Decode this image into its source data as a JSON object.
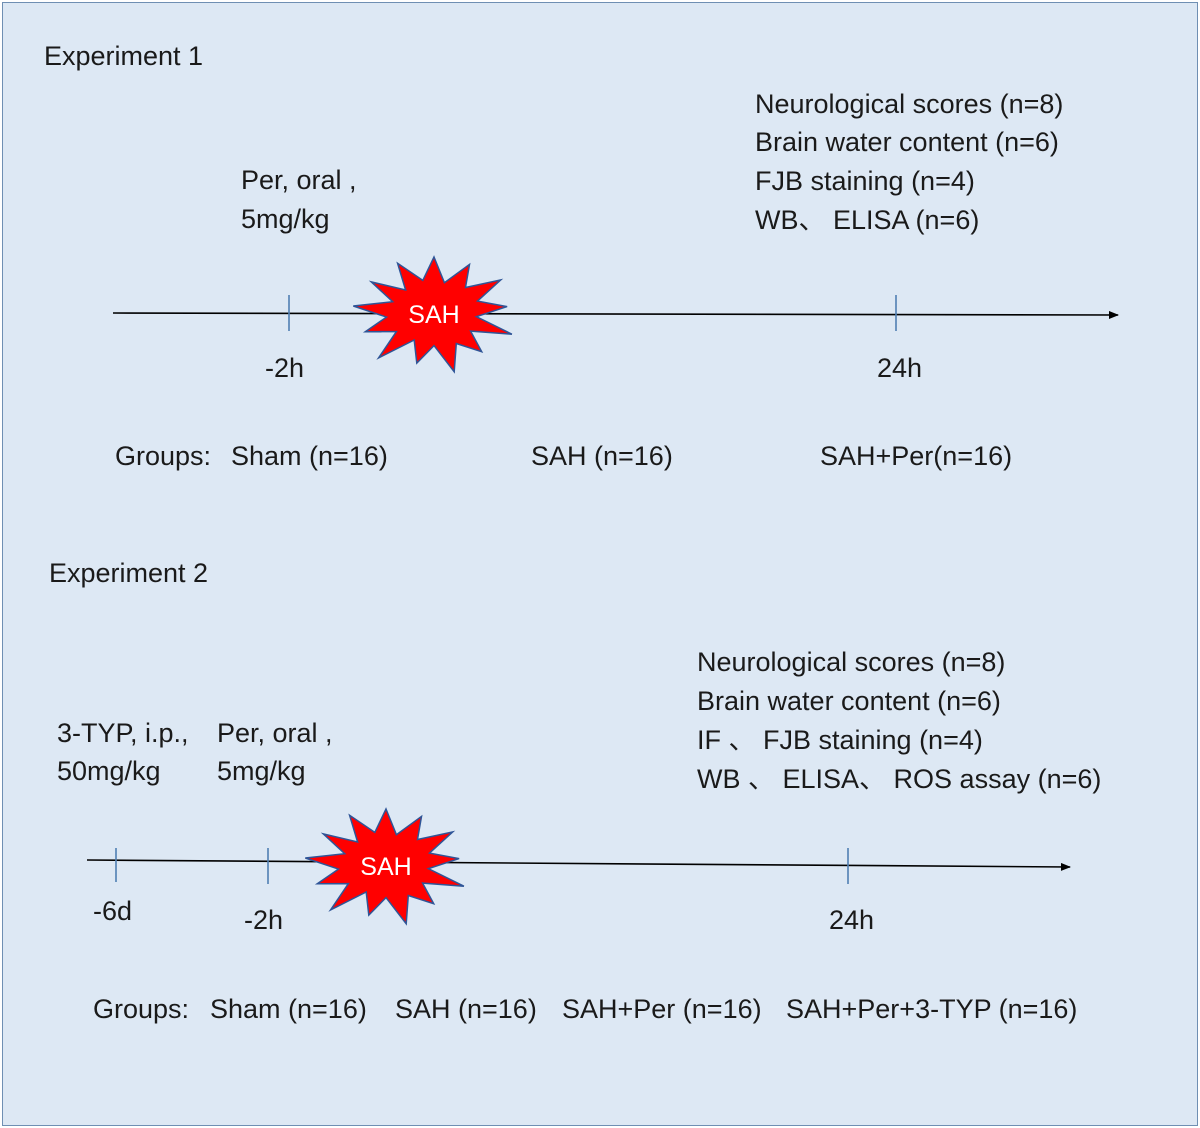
{
  "experiment1": {
    "title": "Experiment 1",
    "treatment": [
      "Per, oral ,",
      "5mg/kg"
    ],
    "event_label": "SAH",
    "tick_labels": [
      "-2h",
      "24h"
    ],
    "outcomes": [
      "Neurological scores (n=8)",
      "Brain water content  (n=6)",
      "FJB staining (n=4)",
      "WB、 ELISA (n=6)"
    ],
    "groups_label": "Groups:",
    "groups": [
      "Sham (n=16)",
      "SAH (n=16)",
      "SAH+Per(n=16)"
    ]
  },
  "experiment2": {
    "title": "Experiment 2",
    "treatment_inhibitor": [
      "3-TYP, i.p.,",
      "50mg/kg"
    ],
    "treatment": [
      "Per, oral ,",
      "5mg/kg"
    ],
    "event_label": "SAH",
    "tick_labels": [
      "-6d",
      "-2h",
      "24h"
    ],
    "outcomes": [
      "Neurological scores (n=8)",
      "Brain water content  (n=6)",
      "IF 、 FJB staining (n=4)",
      "WB 、 ELISA、 ROS assay (n=6)"
    ],
    "groups_label": "Groups:",
    "groups": [
      "Sham (n=16)",
      "SAH (n=16)",
      "SAH+Per (n=16)",
      "SAH+Per+3-TYP (n=16)"
    ]
  },
  "colors": {
    "background": "#dde8f4",
    "border": "#6f8fb3",
    "tick": "#4f7fb3",
    "axis": "#000000",
    "burst_fill": "#ff0000",
    "burst_stroke": "#2f5597",
    "burst_text": "#ffffff"
  }
}
